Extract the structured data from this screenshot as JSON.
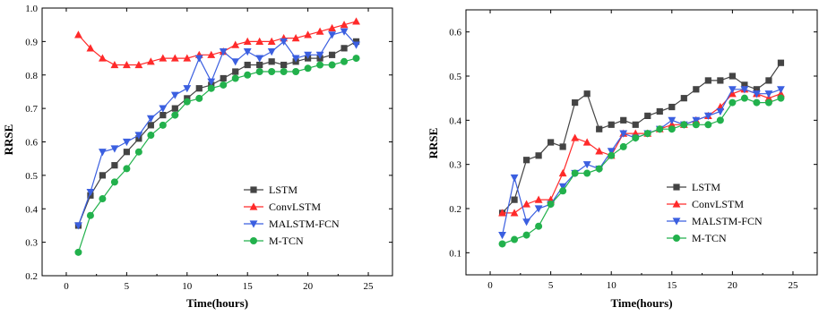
{
  "colors": {
    "LSTM": "#444444",
    "ConvLSTM": "#ff2a2a",
    "MALSTM-FCN": "#3b5fe0",
    "M-TCN": "#22b14c"
  },
  "chart_data": [
    {
      "type": "line",
      "xlabel": "Time(hours)",
      "ylabel": "RRSE",
      "xlim": [
        -2,
        27
      ],
      "ylim": [
        0.2,
        1.0
      ],
      "xticks": [
        0,
        5,
        10,
        15,
        20,
        25
      ],
      "yticks": [
        0.2,
        0.3,
        0.4,
        0.5,
        0.6,
        0.7,
        0.8,
        0.9,
        1.0
      ],
      "ytick_labels": [
        "0.2",
        "0.3",
        "0.4",
        "0.5",
        "0.6",
        "0.7",
        "0.8",
        "0.9",
        "1.0"
      ],
      "legend_position": "bottom-right",
      "x": [
        1,
        2,
        3,
        4,
        5,
        6,
        7,
        8,
        9,
        10,
        11,
        12,
        13,
        14,
        15,
        16,
        17,
        18,
        19,
        20,
        21,
        22,
        23,
        24
      ],
      "series": [
        {
          "name": "LSTM",
          "marker": "square",
          "values": [
            0.35,
            0.44,
            0.5,
            0.53,
            0.57,
            0.61,
            0.65,
            0.68,
            0.7,
            0.73,
            0.76,
            0.77,
            0.79,
            0.81,
            0.83,
            0.83,
            0.84,
            0.83,
            0.84,
            0.85,
            0.85,
            0.86,
            0.88,
            0.9
          ]
        },
        {
          "name": "ConvLSTM",
          "marker": "triangle-up",
          "values": [
            0.92,
            0.88,
            0.85,
            0.83,
            0.83,
            0.83,
            0.84,
            0.85,
            0.85,
            0.85,
            0.86,
            0.86,
            0.87,
            0.89,
            0.9,
            0.9,
            0.9,
            0.91,
            0.91,
            0.92,
            0.93,
            0.94,
            0.95,
            0.96
          ]
        },
        {
          "name": "MALSTM-FCN",
          "marker": "triangle-down",
          "values": [
            0.35,
            0.45,
            0.57,
            0.58,
            0.6,
            0.62,
            0.67,
            0.7,
            0.74,
            0.76,
            0.85,
            0.78,
            0.87,
            0.84,
            0.87,
            0.85,
            0.87,
            0.9,
            0.85,
            0.86,
            0.86,
            0.92,
            0.93,
            0.89
          ]
        },
        {
          "name": "M-TCN",
          "marker": "circle",
          "values": [
            0.27,
            0.38,
            0.43,
            0.48,
            0.52,
            0.57,
            0.62,
            0.65,
            0.68,
            0.72,
            0.73,
            0.76,
            0.77,
            0.79,
            0.8,
            0.81,
            0.81,
            0.81,
            0.81,
            0.82,
            0.83,
            0.83,
            0.84,
            0.85
          ]
        }
      ]
    },
    {
      "type": "line",
      "xlabel": "Time(hours)",
      "ylabel": "RRSE",
      "xlim": [
        -2,
        27
      ],
      "ylim": [
        0.05,
        0.65
      ],
      "xticks": [
        0,
        5,
        10,
        15,
        20,
        25
      ],
      "yticks": [
        0.1,
        0.2,
        0.3,
        0.4,
        0.5,
        0.6
      ],
      "ytick_labels": [
        "0.1",
        "0.2",
        "0.3",
        "0.4",
        "0.5",
        "0.6"
      ],
      "legend_position": "bottom-right",
      "x": [
        1,
        2,
        3,
        4,
        5,
        6,
        7,
        8,
        9,
        10,
        11,
        12,
        13,
        14,
        15,
        16,
        17,
        18,
        19,
        20,
        21,
        22,
        23,
        24
      ],
      "series": [
        {
          "name": "LSTM",
          "marker": "square",
          "values": [
            0.19,
            0.22,
            0.31,
            0.32,
            0.35,
            0.34,
            0.44,
            0.46,
            0.38,
            0.39,
            0.4,
            0.39,
            0.41,
            0.42,
            0.43,
            0.45,
            0.47,
            0.49,
            0.49,
            0.5,
            0.48,
            0.47,
            0.49,
            0.53
          ]
        },
        {
          "name": "ConvLSTM",
          "marker": "triangle-up",
          "values": [
            0.19,
            0.19,
            0.21,
            0.22,
            0.22,
            0.28,
            0.36,
            0.35,
            0.33,
            0.32,
            0.37,
            0.37,
            0.37,
            0.38,
            0.39,
            0.39,
            0.4,
            0.41,
            0.43,
            0.46,
            0.47,
            0.46,
            0.45,
            0.46
          ]
        },
        {
          "name": "MALSTM-FCN",
          "marker": "triangle-down",
          "values": [
            0.14,
            0.27,
            0.17,
            0.2,
            0.21,
            0.25,
            0.28,
            0.3,
            0.29,
            0.33,
            0.37,
            0.36,
            0.37,
            0.38,
            0.4,
            0.39,
            0.4,
            0.41,
            0.42,
            0.47,
            0.47,
            0.46,
            0.46,
            0.47
          ]
        },
        {
          "name": "M-TCN",
          "marker": "circle",
          "values": [
            0.12,
            0.13,
            0.14,
            0.16,
            0.21,
            0.24,
            0.28,
            0.28,
            0.29,
            0.32,
            0.34,
            0.36,
            0.37,
            0.38,
            0.38,
            0.39,
            0.39,
            0.39,
            0.4,
            0.44,
            0.45,
            0.44,
            0.44,
            0.45
          ]
        }
      ]
    }
  ]
}
